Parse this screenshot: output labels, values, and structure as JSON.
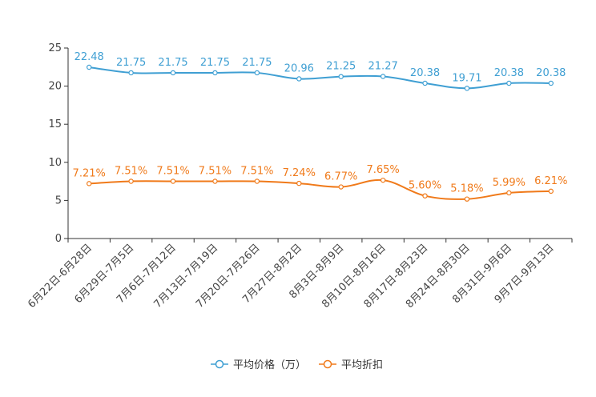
{
  "chart_data": {
    "type": "line",
    "title": "",
    "xlabel": "",
    "ylabel": "",
    "ylim": [
      0,
      25
    ],
    "yticks": [
      0,
      5,
      10,
      15,
      20,
      25
    ],
    "grid": false,
    "legend_position": "bottom-center",
    "categories": [
      "6月22日-6月28日",
      "6月29日-7月5日",
      "7月6日-7月12日",
      "7月13日-7月19日",
      "7月20日-7月26日",
      "7月27日-8月2日",
      "8月3日-8月9日",
      "8月10日-8月16日",
      "8月17日-8月23日",
      "8月24日-8月30日",
      "8月31日-9月6日",
      "9月7日-9月13日"
    ],
    "series": [
      {
        "name": "平均价格（万）",
        "color": "#3f9fd3",
        "values": [
          22.48,
          21.75,
          21.75,
          21.75,
          21.75,
          20.96,
          21.25,
          21.27,
          20.38,
          19.71,
          20.38,
          20.38
        ],
        "labels": [
          "22.48",
          "21.75",
          "21.75",
          "21.75",
          "21.75",
          "20.96",
          "21.25",
          "21.27",
          "20.38",
          "19.71",
          "20.38",
          "20.38"
        ]
      },
      {
        "name": "平均折扣",
        "color": "#f07a1a",
        "values": [
          7.21,
          7.51,
          7.51,
          7.51,
          7.51,
          7.24,
          6.77,
          7.65,
          5.6,
          5.18,
          5.99,
          6.21
        ],
        "labels": [
          "7.21%",
          "7.51%",
          "7.51%",
          "7.51%",
          "7.51%",
          "7.24%",
          "6.77%",
          "7.65%",
          "5.60%",
          "5.18%",
          "5.99%",
          "6.21%"
        ]
      }
    ]
  }
}
